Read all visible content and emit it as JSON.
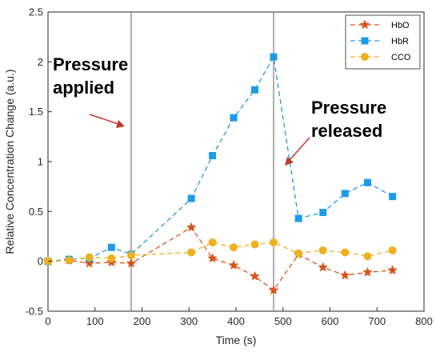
{
  "chart_data": {
    "type": "line",
    "xlabel": "Time (s)",
    "ylabel": "Relative Concentration Change (a.u.)",
    "xlim": [
      0,
      800
    ],
    "ylim": [
      -0.5,
      2.5
    ],
    "xticks": [
      0,
      100,
      200,
      300,
      400,
      500,
      600,
      700,
      800
    ],
    "yticks": [
      -0.5,
      0,
      0.5,
      1,
      1.5,
      2,
      2.5
    ],
    "xtick_labels": [
      "0",
      "100",
      "200",
      "300",
      "400",
      "500",
      "600",
      "700",
      "800"
    ],
    "ytick_labels": [
      "-0.5",
      "0",
      "0.5",
      "1",
      "1.5",
      "2",
      "2.5"
    ],
    "grid": false,
    "legend_position": "top-right",
    "vertical_lines": [
      177,
      480
    ],
    "series": [
      {
        "name": "HbO",
        "color": "#D95319",
        "marker": "star",
        "x": [
          0,
          45,
          88,
          135,
          177,
          305,
          350,
          395,
          440,
          480,
          533,
          585,
          632,
          680,
          733
        ],
        "y": [
          0,
          0.01,
          -0.02,
          -0.01,
          -0.02,
          0.34,
          0.03,
          -0.04,
          -0.15,
          -0.29,
          0.07,
          -0.06,
          -0.14,
          -0.11,
          -0.09
        ]
      },
      {
        "name": "HbR",
        "color": "#1E9BE6",
        "marker": "square",
        "x": [
          0,
          45,
          88,
          135,
          177,
          305,
          350,
          395,
          440,
          480,
          533,
          585,
          632,
          680,
          733
        ],
        "y": [
          0,
          0.02,
          0.03,
          0.14,
          0.07,
          0.63,
          1.06,
          1.44,
          1.72,
          2.05,
          0.43,
          0.49,
          0.68,
          0.79,
          0.65
        ]
      },
      {
        "name": "CCO",
        "color": "#EDB120",
        "marker": "circle",
        "x": [
          0,
          45,
          88,
          135,
          177,
          305,
          350,
          395,
          440,
          480,
          533,
          585,
          632,
          680,
          733
        ],
        "y": [
          0,
          0.01,
          0.04,
          0.03,
          0.06,
          0.09,
          0.19,
          0.14,
          0.17,
          0.19,
          0.08,
          0.11,
          0.09,
          0.05,
          0.11
        ]
      }
    ],
    "annotations": [
      {
        "id": "applied",
        "lines": [
          "Pressure",
          "applied"
        ]
      },
      {
        "id": "released",
        "lines": [
          "Pressure",
          "released"
        ]
      }
    ]
  }
}
